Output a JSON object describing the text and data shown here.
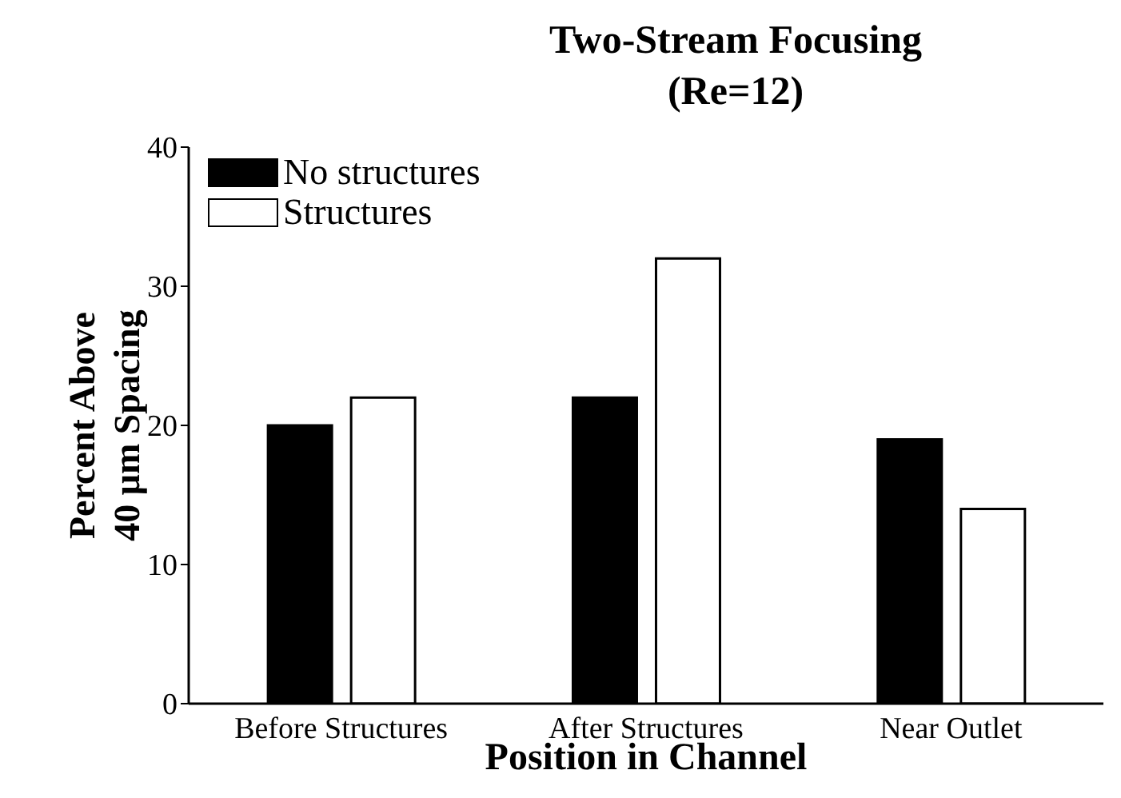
{
  "chart_data": {
    "type": "bar",
    "title": "Two-Stream Focusing\n(Re=12)",
    "xlabel": "Position in Channel",
    "ylabel": "Percent Above\n40 μm Spacing",
    "categories": [
      "Before Structures",
      "After Structures",
      "Near Outlet"
    ],
    "series": [
      {
        "name": "No structures",
        "color": "#000000",
        "values": [
          20,
          22,
          19
        ]
      },
      {
        "name": "Structures",
        "color": "#ffffff",
        "values": [
          22,
          32,
          14
        ]
      }
    ],
    "ylim": [
      0,
      40
    ],
    "yticks": [
      0,
      10,
      20,
      30,
      40
    ],
    "grid": false,
    "legend": "top left"
  }
}
